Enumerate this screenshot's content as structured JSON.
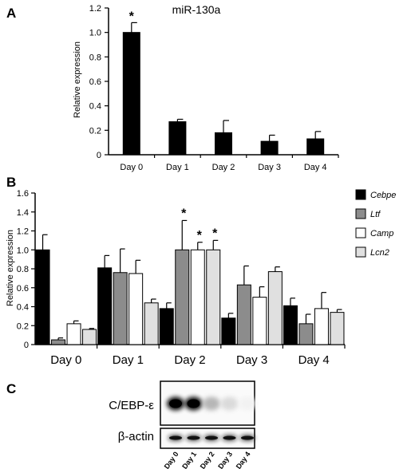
{
  "panels": {
    "a": {
      "letter": "A"
    },
    "b": {
      "letter": "B"
    },
    "c": {
      "letter": "C"
    }
  },
  "chart_data": [
    {
      "type": "bar",
      "title": "miR-130a",
      "ylabel": "Relative expression",
      "xlabel": "",
      "categories": [
        "Day 0",
        "Day 1",
        "Day 2",
        "Day 3",
        "Day 4"
      ],
      "values": [
        1.0,
        0.27,
        0.18,
        0.11,
        0.13
      ],
      "errors": [
        0.08,
        0.02,
        0.1,
        0.05,
        0.06
      ],
      "significant": [
        true,
        false,
        false,
        false,
        false
      ],
      "ylim": [
        0,
        1.2
      ],
      "yticks": [
        0,
        0.2,
        0.4,
        0.6,
        0.8,
        1.0,
        1.2
      ],
      "color": "#000000",
      "grid": false
    },
    {
      "type": "bar",
      "title": "",
      "ylabel": "Relative expression",
      "xlabel": "",
      "categories": [
        "Day 0",
        "Day 1",
        "Day 2",
        "Day 3",
        "Day 4"
      ],
      "series": [
        {
          "name": "Cebpe",
          "color": "#000000",
          "values": [
            1.0,
            0.81,
            0.38,
            0.28,
            0.41
          ],
          "errors": [
            0.16,
            0.13,
            0.06,
            0.05,
            0.08
          ],
          "significant": [
            false,
            false,
            false,
            false,
            false
          ]
        },
        {
          "name": "Ltf",
          "color": "#8c8c8c",
          "values": [
            0.05,
            0.76,
            1.0,
            0.63,
            0.22
          ],
          "errors": [
            0.02,
            0.25,
            0.31,
            0.2,
            0.1
          ],
          "significant": [
            false,
            false,
            true,
            false,
            false
          ]
        },
        {
          "name": "Camp",
          "color": "#ffffff",
          "values": [
            0.22,
            0.75,
            1.0,
            0.5,
            0.38
          ],
          "errors": [
            0.03,
            0.14,
            0.08,
            0.11,
            0.17
          ],
          "significant": [
            false,
            false,
            true,
            false,
            false
          ]
        },
        {
          "name": "Lcn2",
          "color": "#e0e0e0",
          "values": [
            0.16,
            0.44,
            1.0,
            0.77,
            0.34
          ],
          "errors": [
            0.01,
            0.04,
            0.1,
            0.05,
            0.03
          ],
          "significant": [
            false,
            false,
            true,
            false,
            false
          ]
        }
      ],
      "ylim": [
        0,
        1.6
      ],
      "yticks": [
        0,
        0.2,
        0.4,
        0.6,
        0.8,
        1.0,
        1.2,
        1.4,
        1.6
      ],
      "legend": "right",
      "grid": false
    }
  ],
  "blot": {
    "rows": [
      {
        "label": "C/EBP-ε",
        "intensities": [
          1.0,
          1.0,
          0.3,
          0.15,
          0.05
        ]
      },
      {
        "label": "β-actin",
        "intensities": [
          0.9,
          0.9,
          0.9,
          0.9,
          0.9
        ]
      }
    ],
    "lanes": [
      "Day 0",
      "Day 1",
      "Day 2",
      "Day 3",
      "Day 4"
    ]
  }
}
